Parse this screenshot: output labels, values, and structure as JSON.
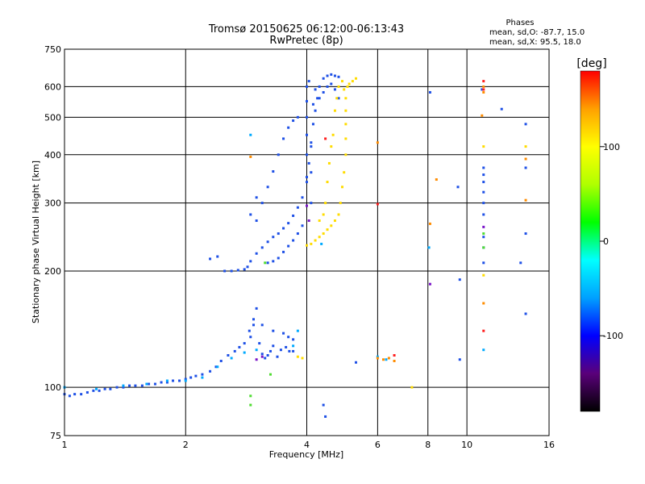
{
  "chart_data": {
    "type": "scatter",
    "title": "Tromsø 20150625 06:12:00-06:13:43",
    "subtitle": "RwPretec (8p)",
    "stats_title": "Phases",
    "stats_line1": "mean, sd,O: -87.7, 15.0",
    "stats_line2": "mean, sd,X:  95.5, 18.0",
    "xlabel": "Frequency [MHz]",
    "ylabel": "Stationary phase Virtual Height [km]",
    "x_scale": "log",
    "y_scale": "log",
    "xlim": [
      1,
      16
    ],
    "ylim": [
      75,
      750
    ],
    "x_ticks": [
      1,
      2,
      4,
      6,
      8,
      10,
      16
    ],
    "x_tick_labels": [
      "1",
      "2",
      "4",
      "6",
      "8",
      "10",
      "16"
    ],
    "y_ticks": [
      75,
      100,
      200,
      300,
      400,
      500,
      600,
      750
    ],
    "y_tick_labels": [
      "75",
      "100",
      "200",
      "300",
      "400",
      "500",
      "600",
      "750"
    ],
    "grid": true,
    "colorbar": {
      "label": "[deg]",
      "range": [
        -180,
        180
      ],
      "ticks": [
        100,
        0,
        -100
      ],
      "tick_labels": [
        "100",
        "0",
        "-100"
      ],
      "colors": [
        "#000000",
        "#5a007a",
        "#0000ff",
        "#00a0ff",
        "#00ffff",
        "#00ff00",
        "#b0ff00",
        "#ffff00",
        "#ffa000",
        "#ff0000"
      ]
    },
    "series": [
      {
        "color": "#1e50e6",
        "points": [
          [
            1.0,
            96
          ],
          [
            1.03,
            95
          ],
          [
            1.06,
            96
          ],
          [
            1.1,
            96
          ],
          [
            1.14,
            97
          ],
          [
            1.18,
            98
          ],
          [
            1.22,
            98
          ],
          [
            1.26,
            99
          ],
          [
            1.3,
            99
          ],
          [
            1.35,
            100
          ],
          [
            1.4,
            100
          ],
          [
            1.45,
            101
          ],
          [
            1.5,
            101
          ],
          [
            1.56,
            101
          ],
          [
            1.62,
            102
          ],
          [
            1.68,
            102
          ],
          [
            1.74,
            103
          ],
          [
            1.8,
            103
          ],
          [
            1.86,
            104
          ],
          [
            1.93,
            104
          ],
          [
            2.0,
            105
          ],
          [
            2.06,
            106
          ],
          [
            2.12,
            107
          ],
          [
            2.2,
            108
          ],
          [
            2.3,
            110
          ],
          [
            2.38,
            113
          ],
          [
            2.45,
            117
          ],
          [
            2.55,
            121
          ],
          [
            2.65,
            124
          ],
          [
            2.72,
            127
          ],
          [
            2.8,
            130
          ],
          [
            2.88,
            140
          ],
          [
            2.95,
            150
          ],
          [
            3.0,
            160
          ],
          [
            3.05,
            130
          ],
          [
            3.1,
            122
          ],
          [
            3.15,
            119
          ],
          [
            3.2,
            121
          ],
          [
            3.25,
            124
          ],
          [
            3.3,
            128
          ],
          [
            3.38,
            120
          ],
          [
            3.45,
            125
          ],
          [
            3.55,
            127
          ],
          [
            3.62,
            124
          ],
          [
            3.7,
            124
          ],
          [
            2.5,
            200
          ],
          [
            2.6,
            200
          ],
          [
            2.7,
            201
          ],
          [
            2.8,
            202
          ],
          [
            2.85,
            205
          ],
          [
            2.9,
            212
          ],
          [
            3.0,
            222
          ],
          [
            3.1,
            230
          ],
          [
            3.2,
            238
          ],
          [
            3.3,
            245
          ],
          [
            3.4,
            250
          ],
          [
            3.5,
            258
          ],
          [
            3.6,
            266
          ],
          [
            3.7,
            278
          ],
          [
            3.8,
            292
          ],
          [
            3.9,
            310
          ],
          [
            4.0,
            340
          ],
          [
            4.05,
            380
          ],
          [
            4.1,
            430
          ],
          [
            4.15,
            480
          ],
          [
            4.2,
            520
          ],
          [
            4.25,
            560
          ],
          [
            4.3,
            600
          ],
          [
            4.4,
            630
          ],
          [
            4.5,
            640
          ],
          [
            4.6,
            645
          ],
          [
            4.7,
            640
          ],
          [
            4.8,
            636
          ],
          [
            3.2,
            210
          ],
          [
            3.3,
            212
          ],
          [
            3.4,
            216
          ],
          [
            3.5,
            224
          ],
          [
            3.6,
            232
          ],
          [
            3.7,
            240
          ],
          [
            3.8,
            250
          ],
          [
            3.9,
            262
          ],
          [
            3.0,
            270
          ],
          [
            3.1,
            300
          ],
          [
            3.2,
            330
          ],
          [
            3.3,
            362
          ],
          [
            3.4,
            400
          ],
          [
            3.5,
            440
          ],
          [
            3.6,
            470
          ],
          [
            3.7,
            490
          ],
          [
            3.8,
            500
          ],
          [
            2.3,
            215
          ],
          [
            2.4,
            218
          ],
          [
            2.9,
            280
          ],
          [
            3.0,
            310
          ],
          [
            4.0,
            350
          ],
          [
            4.0,
            400
          ],
          [
            4.0,
            450
          ],
          [
            4.0,
            500
          ],
          [
            4.0,
            550
          ],
          [
            4.0,
            600
          ],
          [
            4.05,
            620
          ],
          [
            4.1,
            300
          ],
          [
            4.1,
            360
          ],
          [
            4.1,
            420
          ],
          [
            4.15,
            540
          ],
          [
            4.2,
            590
          ],
          [
            4.3,
            560
          ],
          [
            4.4,
            580
          ],
          [
            4.5,
            600
          ],
          [
            4.6,
            610
          ],
          [
            4.7,
            590
          ],
          [
            4.8,
            560
          ],
          [
            3.1,
            145
          ],
          [
            3.3,
            140
          ],
          [
            3.5,
            138
          ],
          [
            3.6,
            135
          ],
          [
            3.7,
            133
          ],
          [
            2.9,
            135
          ],
          [
            2.95,
            145
          ],
          [
            4.4,
            90
          ],
          [
            4.45,
            84
          ],
          [
            5.3,
            116
          ],
          [
            9.6,
            118
          ],
          [
            8.1,
            580
          ],
          [
            9.5,
            330
          ],
          [
            9.6,
            190
          ],
          [
            11.0,
            370
          ],
          [
            11.0,
            355
          ],
          [
            11.0,
            340
          ],
          [
            11.0,
            320
          ],
          [
            11.0,
            300
          ],
          [
            11.0,
            280
          ],
          [
            11.0,
            245
          ],
          [
            11.0,
            230
          ],
          [
            11.0,
            210
          ],
          [
            14.0,
            480
          ],
          [
            14.0,
            370
          ],
          [
            14.0,
            250
          ],
          [
            14.0,
            155
          ],
          [
            10.9,
            590
          ],
          [
            12.2,
            525
          ],
          [
            13.6,
            210
          ]
        ]
      },
      {
        "color": "#00aaff",
        "points": [
          [
            1.0,
            100
          ],
          [
            1.2,
            99
          ],
          [
            1.4,
            101
          ],
          [
            1.6,
            102
          ],
          [
            1.8,
            104
          ],
          [
            2.0,
            104
          ],
          [
            2.2,
            106
          ],
          [
            2.4,
            113
          ],
          [
            2.6,
            119
          ],
          [
            2.8,
            123
          ],
          [
            3.0,
            125
          ],
          [
            3.7,
            128
          ],
          [
            3.8,
            140
          ],
          [
            2.9,
            450
          ],
          [
            8.05,
            230
          ],
          [
            11.0,
            125
          ],
          [
            4.35,
            235
          ],
          [
            6.0,
            120
          ],
          [
            6.3,
            118
          ]
        ]
      },
      {
        "color": "#ffdc00",
        "points": [
          [
            4.0,
            233
          ],
          [
            4.1,
            235
          ],
          [
            4.2,
            240
          ],
          [
            4.3,
            245
          ],
          [
            4.4,
            250
          ],
          [
            4.5,
            256
          ],
          [
            4.6,
            262
          ],
          [
            4.7,
            270
          ],
          [
            4.8,
            280
          ],
          [
            4.85,
            300
          ],
          [
            4.9,
            330
          ],
          [
            4.95,
            360
          ],
          [
            5.0,
            400
          ],
          [
            5.0,
            440
          ],
          [
            5.0,
            480
          ],
          [
            5.0,
            520
          ],
          [
            5.0,
            560
          ],
          [
            4.95,
            590
          ],
          [
            5.05,
            600
          ],
          [
            5.1,
            610
          ],
          [
            5.2,
            620
          ],
          [
            5.3,
            630
          ],
          [
            4.9,
            620
          ],
          [
            4.8,
            600
          ],
          [
            4.75,
            560
          ],
          [
            4.7,
            520
          ],
          [
            4.65,
            450
          ],
          [
            4.6,
            420
          ],
          [
            4.55,
            380
          ],
          [
            4.5,
            340
          ],
          [
            4.45,
            300
          ],
          [
            4.4,
            280
          ],
          [
            4.3,
            270
          ],
          [
            3.8,
            120
          ],
          [
            3.9,
            119
          ],
          [
            11.0,
            195
          ],
          [
            11.0,
            420
          ],
          [
            14.0,
            420
          ],
          [
            7.3,
            100
          ]
        ]
      },
      {
        "color": "#ff8c00",
        "points": [
          [
            6.0,
            119
          ],
          [
            6.2,
            118
          ],
          [
            6.4,
            119
          ],
          [
            6.6,
            117
          ],
          [
            6.0,
            430
          ],
          [
            8.1,
            265
          ],
          [
            8.4,
            345
          ],
          [
            11.0,
            165
          ],
          [
            11.0,
            600
          ],
          [
            11.0,
            580
          ],
          [
            14.0,
            305
          ],
          [
            14.0,
            390
          ],
          [
            2.9,
            395
          ],
          [
            10.9,
            505
          ]
        ]
      },
      {
        "color": "#ff1e1e",
        "points": [
          [
            11.0,
            620
          ],
          [
            6.0,
            298
          ],
          [
            6.6,
            121
          ],
          [
            11.0,
            140
          ],
          [
            11.0,
            590
          ],
          [
            4.45,
            440
          ]
        ]
      },
      {
        "color": "#50dc32",
        "points": [
          [
            3.25,
            108
          ],
          [
            2.9,
            95
          ],
          [
            2.9,
            90
          ],
          [
            11.0,
            230
          ],
          [
            11.0,
            250
          ],
          [
            3.15,
            210
          ]
        ]
      },
      {
        "color": "#7a14c8",
        "points": [
          [
            3.0,
            118
          ],
          [
            3.1,
            120
          ],
          [
            4.0,
            295
          ],
          [
            4.05,
            270
          ],
          [
            11.0,
            260
          ],
          [
            8.1,
            185
          ]
        ]
      }
    ]
  }
}
